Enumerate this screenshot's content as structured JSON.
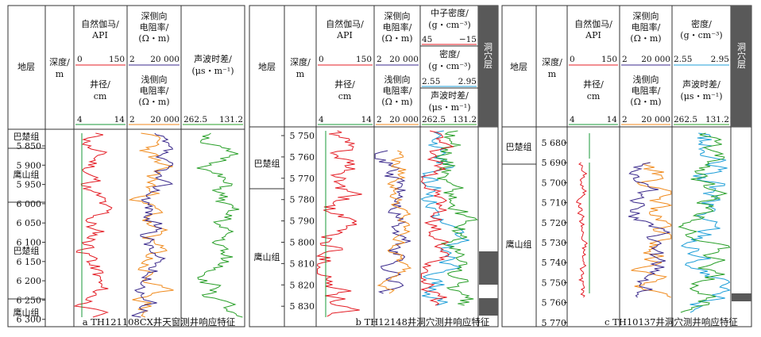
{
  "panels": {
    "a": {
      "caption": "a TH121108CX井天窗测井响应特征",
      "header": {
        "formation": "地层",
        "depth": [
          "深度/",
          "m"
        ],
        "gr": [
          "自然伽马/",
          "API"
        ],
        "gr_range": [
          "0",
          "150"
        ],
        "cal": [
          "井径/",
          "cm"
        ],
        "cal_range": [
          "4",
          "14"
        ],
        "rd": [
          "深侧向",
          "电阻率/",
          "(Ω・m)"
        ],
        "rd_range": [
          "2",
          "20 000"
        ],
        "rs": [
          "浅侧向",
          "电阻率/",
          "(Ω・m)"
        ],
        "rs_range": [
          "2",
          "20 000"
        ],
        "ac": [
          "声波时差/",
          "(μs・m⁻¹)"
        ],
        "ac_range": [
          "262.5",
          "131.2"
        ]
      },
      "depth_ticks": [
        "5 850",
        "5 900",
        "5 950",
        "6 000",
        "6 050",
        "6 100",
        "6 150",
        "6 200",
        "6 250",
        "6 300"
      ],
      "formations": [
        "巴楚组",
        "鹰山组",
        "巴楚组",
        "鹰山组"
      ]
    },
    "b": {
      "caption": "b TH12148井洞穴测井响应特征",
      "header": {
        "formation": "地层",
        "depth": [
          "深度/",
          "m"
        ],
        "gr": [
          "自然伽马/",
          "API"
        ],
        "gr_range": [
          "0",
          "150"
        ],
        "cal": [
          "井径/",
          "cm"
        ],
        "cal_range": [
          "4",
          "14"
        ],
        "rd": [
          "深侧向",
          "电阻率/",
          "(Ω・m)"
        ],
        "rd_range": [
          "2",
          "20 000"
        ],
        "rs": [
          "浅侧向",
          "电阻率/",
          "(Ω・m)"
        ],
        "rs_range": [
          "2",
          "20 000"
        ],
        "cnl": [
          "中子密度/",
          "(g・cm⁻³)"
        ],
        "cnl_range": [
          "45",
          "−15"
        ],
        "den": [
          "密度/",
          "(g・cm⁻³)"
        ],
        "den_range": [
          "2.55",
          "2.95"
        ],
        "ac": [
          "声波时差/",
          "(μs・m⁻¹)"
        ],
        "ac_range": [
          "262.5",
          "131.2"
        ],
        "cave": "洞穴层"
      },
      "depth_ticks": [
        "5 750",
        "5 760",
        "5 770",
        "5 780",
        "5 790",
        "5 800",
        "5 810",
        "5 820",
        "5 830"
      ],
      "formations": [
        "巴楚组",
        "鹰山组"
      ]
    },
    "c": {
      "caption": "c TH10137井洞穴测井响应特征",
      "header": {
        "formation": "地层",
        "depth": [
          "深度/",
          "m"
        ],
        "gr": [
          "自然伽马/",
          "API"
        ],
        "gr_range": [
          "0",
          "150"
        ],
        "cal": [
          "井径/",
          "cm"
        ],
        "cal_range": [
          "4",
          "14"
        ],
        "rd": [
          "深侧向",
          "电阻率/",
          "(Ω・m)"
        ],
        "rd_range": [
          "2",
          "20 000"
        ],
        "rs": [
          "浅侧向",
          "电阻率/",
          "(Ω・m)"
        ],
        "rs_range": [
          "2",
          "20 000"
        ],
        "den": [
          "密度/",
          "(g・cm⁻³)"
        ],
        "den_range": [
          "2.55",
          "2.95"
        ],
        "ac": [
          "声波时差/",
          "(μs・m⁻¹)"
        ],
        "ac_range": [
          "262.5",
          "131.2"
        ],
        "cave": "洞穴层"
      },
      "depth_ticks": [
        "5 680",
        "5 690",
        "5 700",
        "5 710",
        "5 720",
        "5 730",
        "5 740",
        "5 750",
        "5 760",
        "5 770"
      ],
      "formations": [
        "巴楚组",
        "鹰山组"
      ]
    }
  },
  "colors": {
    "gr": "#e41e26",
    "cal": "#1a9a3a",
    "rd": "#3b2a8c",
    "rs": "#f08a1c",
    "ac": "#2aa02a",
    "den": "#1f9fd8",
    "cnl": "#e41e26",
    "cave": "#595959",
    "frame": "#333333"
  }
}
